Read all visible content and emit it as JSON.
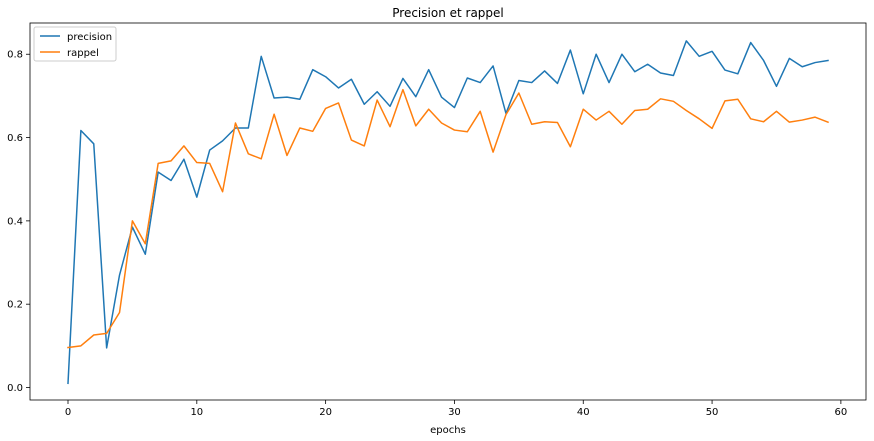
{
  "chart_data": {
    "type": "line",
    "title": "Precision et rappel",
    "xlabel": "epochs",
    "ylabel": "",
    "xlim": [
      -2.95,
      61.95
    ],
    "ylim": [
      -0.03,
      0.875
    ],
    "xticks": [
      0,
      10,
      20,
      30,
      40,
      50,
      60
    ],
    "yticks": [
      0.0,
      0.2,
      0.4,
      0.6,
      0.8
    ],
    "legend_position": "top-left",
    "grid": false,
    "x": [
      0,
      1,
      2,
      3,
      4,
      5,
      6,
      7,
      8,
      9,
      10,
      11,
      12,
      13,
      14,
      15,
      16,
      17,
      18,
      19,
      20,
      21,
      22,
      23,
      24,
      25,
      26,
      27,
      28,
      29,
      30,
      31,
      32,
      33,
      34,
      35,
      36,
      37,
      38,
      39,
      40,
      41,
      42,
      43,
      44,
      45,
      46,
      47,
      48,
      49,
      50,
      51,
      52,
      53,
      54,
      55,
      56,
      57,
      58,
      59
    ],
    "series": [
      {
        "name": "precision",
        "color": "#1f77b4",
        "values": [
          0.01,
          0.617,
          0.585,
          0.095,
          0.27,
          0.385,
          0.32,
          0.517,
          0.497,
          0.548,
          0.457,
          0.57,
          0.592,
          0.623,
          0.623,
          0.795,
          0.695,
          0.697,
          0.692,
          0.763,
          0.746,
          0.719,
          0.74,
          0.68,
          0.71,
          0.675,
          0.742,
          0.698,
          0.763,
          0.697,
          0.672,
          0.743,
          0.732,
          0.772,
          0.658,
          0.737,
          0.732,
          0.76,
          0.73,
          0.81,
          0.705,
          0.8,
          0.732,
          0.8,
          0.758,
          0.776,
          0.755,
          0.749,
          0.832,
          0.795,
          0.807,
          0.762,
          0.753,
          0.828,
          0.785,
          0.723,
          0.79,
          0.77,
          0.78,
          0.785
        ]
      },
      {
        "name": "rappel",
        "color": "#ff7f0e",
        "values": [
          0.096,
          0.1,
          0.126,
          0.13,
          0.18,
          0.4,
          0.345,
          0.538,
          0.544,
          0.58,
          0.54,
          0.538,
          0.47,
          0.635,
          0.561,
          0.549,
          0.656,
          0.557,
          0.623,
          0.615,
          0.67,
          0.683,
          0.594,
          0.58,
          0.69,
          0.626,
          0.715,
          0.628,
          0.668,
          0.635,
          0.618,
          0.614,
          0.663,
          0.565,
          0.655,
          0.707,
          0.632,
          0.638,
          0.636,
          0.578,
          0.668,
          0.642,
          0.663,
          0.632,
          0.665,
          0.668,
          0.693,
          0.687,
          0.665,
          0.645,
          0.622,
          0.688,
          0.692,
          0.645,
          0.638,
          0.663,
          0.637,
          0.642,
          0.649,
          0.637
        ]
      }
    ]
  }
}
